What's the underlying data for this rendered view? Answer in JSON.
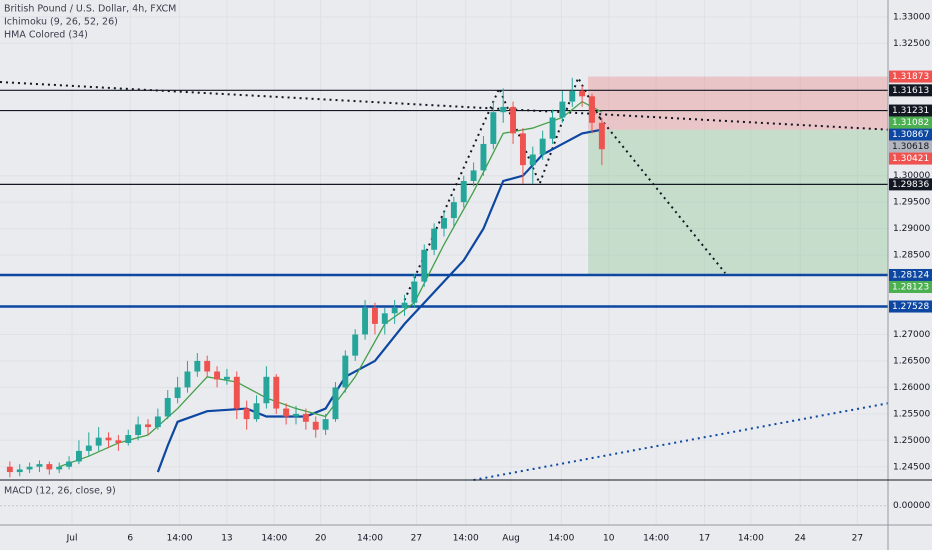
{
  "chart_data": {
    "type": "candlestick",
    "title": "British Pound / U.S. Dollar, 4h, FXCM",
    "indicators": [
      "Ichimoku (9, 26, 52, 26)",
      "HMA Colored (34)"
    ],
    "up_color": "#26a69a",
    "down_color": "#ef5350",
    "xlim": [
      -1,
      89
    ],
    "ylim": [
      1.2425,
      1.3332
    ],
    "xticks": [
      {
        "value": 6.3,
        "label": "Jul"
      },
      {
        "value": 12.2,
        "label": "6"
      },
      {
        "value": 17.2,
        "label": "14:00"
      },
      {
        "value": 22,
        "label": "13"
      },
      {
        "value": 26.8,
        "label": "14:00"
      },
      {
        "value": 31.5,
        "label": "20"
      },
      {
        "value": 36.5,
        "label": "14:00"
      },
      {
        "value": 41.2,
        "label": "27"
      },
      {
        "value": 46.2,
        "label": "14:00"
      },
      {
        "value": 50.8,
        "label": "Aug"
      },
      {
        "value": 55.9,
        "label": "14:00"
      },
      {
        "value": 60.7,
        "label": "10"
      },
      {
        "value": 65.5,
        "label": "14:00"
      },
      {
        "value": 70.4,
        "label": "17"
      },
      {
        "value": 75.1,
        "label": "14:00"
      },
      {
        "value": 80.1,
        "label": "24"
      },
      {
        "value": 85.9,
        "label": "27"
      }
    ],
    "yticks": [
      {
        "value": 1.33,
        "label": "1.33000"
      },
      {
        "value": 1.325,
        "label": "1.32500"
      },
      {
        "value": 1.3,
        "label": "1.30000"
      },
      {
        "value": 1.295,
        "label": "1.29500"
      },
      {
        "value": 1.29,
        "label": "1.29000"
      },
      {
        "value": 1.285,
        "label": "1.28500"
      },
      {
        "value": 1.27,
        "label": "1.27000"
      },
      {
        "value": 1.265,
        "label": "1.26500"
      },
      {
        "value": 1.26,
        "label": "1.26000"
      },
      {
        "value": 1.255,
        "label": "1.25500"
      },
      {
        "value": 1.25,
        "label": "1.25000"
      },
      {
        "value": 1.245,
        "label": "1.24500"
      }
    ],
    "candles": [
      [
        1.245,
        1.246,
        1.243,
        1.244
      ],
      [
        1.244,
        1.2455,
        1.2432,
        1.2445
      ],
      [
        1.2445,
        1.2458,
        1.2438,
        1.245
      ],
      [
        1.245,
        1.2462,
        1.244,
        1.2455
      ],
      [
        1.2455,
        1.246,
        1.2435,
        1.2445
      ],
      [
        1.2445,
        1.2458,
        1.2438,
        1.245
      ],
      [
        1.245,
        1.247,
        1.2445,
        1.246
      ],
      [
        1.246,
        1.25,
        1.2455,
        1.248
      ],
      [
        1.248,
        1.2515,
        1.247,
        1.249
      ],
      [
        1.249,
        1.2525,
        1.248,
        1.2505
      ],
      [
        1.2505,
        1.2515,
        1.2485,
        1.25
      ],
      [
        1.25,
        1.251,
        1.248,
        1.2495
      ],
      [
        1.2495,
        1.252,
        1.249,
        1.251
      ],
      [
        1.251,
        1.2545,
        1.25,
        1.253
      ],
      [
        1.253,
        1.254,
        1.251,
        1.2525
      ],
      [
        1.2525,
        1.256,
        1.252,
        1.2545
      ],
      [
        1.2545,
        1.2595,
        1.254,
        1.258
      ],
      [
        1.258,
        1.262,
        1.257,
        1.26
      ],
      [
        1.26,
        1.265,
        1.259,
        1.263
      ],
      [
        1.263,
        1.2665,
        1.262,
        1.265
      ],
      [
        1.265,
        1.266,
        1.262,
        1.263
      ],
      [
        1.263,
        1.264,
        1.26,
        1.2615
      ],
      [
        1.2615,
        1.2635,
        1.2605,
        1.262
      ],
      [
        1.262,
        1.263,
        1.254,
        1.256
      ],
      [
        1.256,
        1.2575,
        1.252,
        1.254
      ],
      [
        1.254,
        1.2585,
        1.2535,
        1.257
      ],
      [
        1.257,
        1.264,
        1.256,
        1.262
      ],
      [
        1.262,
        1.2625,
        1.255,
        1.256
      ],
      [
        1.256,
        1.257,
        1.253,
        1.2545
      ],
      [
        1.2545,
        1.2565,
        1.253,
        1.255
      ],
      [
        1.255,
        1.256,
        1.252,
        1.2535
      ],
      [
        1.2535,
        1.2545,
        1.2505,
        1.252
      ],
      [
        1.252,
        1.255,
        1.251,
        1.254
      ],
      [
        1.254,
        1.261,
        1.2535,
        1.26
      ],
      [
        1.26,
        1.267,
        1.259,
        1.266
      ],
      [
        1.266,
        1.271,
        1.265,
        1.27
      ],
      [
        1.27,
        1.2765,
        1.269,
        1.275
      ],
      [
        1.275,
        1.276,
        1.27,
        1.272
      ],
      [
        1.272,
        1.275,
        1.27,
        1.274
      ],
      [
        1.274,
        1.2765,
        1.272,
        1.275
      ],
      [
        1.275,
        1.2775,
        1.2735,
        1.276
      ],
      [
        1.276,
        1.2815,
        1.275,
        1.28
      ],
      [
        1.28,
        1.287,
        1.279,
        1.286
      ],
      [
        1.286,
        1.291,
        1.285,
        1.29
      ],
      [
        1.29,
        1.2935,
        1.2885,
        1.292
      ],
      [
        1.292,
        1.296,
        1.2905,
        1.295
      ],
      [
        1.295,
        1.3,
        1.294,
        1.299
      ],
      [
        1.299,
        1.3025,
        1.298,
        1.301
      ],
      [
        1.301,
        1.3075,
        1.3,
        1.306
      ],
      [
        1.306,
        1.314,
        1.305,
        1.312
      ],
      [
        1.312,
        1.3165,
        1.31,
        1.313
      ],
      [
        1.313,
        1.314,
        1.306,
        1.308
      ],
      [
        1.308,
        1.309,
        1.2985,
        1.302
      ],
      [
        1.302,
        1.3055,
        1.2985,
        1.304
      ],
      [
        1.304,
        1.3085,
        1.303,
        1.307
      ],
      [
        1.307,
        1.3125,
        1.306,
        1.311
      ],
      [
        1.311,
        1.316,
        1.31,
        1.314
      ],
      [
        1.314,
        1.3185,
        1.313,
        1.316
      ],
      [
        1.316,
        1.317,
        1.313,
        1.315
      ],
      [
        1.315,
        1.3155,
        1.308,
        1.31
      ],
      [
        1.31,
        1.311,
        1.302,
        1.305
      ]
    ],
    "lines": [
      {
        "color": "#0d47a1",
        "x": [
          15,
          16,
          17,
          20,
          24,
          26,
          30,
          32,
          34,
          37,
          40,
          42,
          44,
          46,
          48,
          50,
          52,
          54,
          56,
          58,
          60
        ],
        "y": [
          1.244,
          1.249,
          1.2535,
          1.2555,
          1.256,
          1.2545,
          1.2545,
          1.256,
          1.262,
          1.265,
          1.272,
          1.276,
          1.28,
          1.284,
          1.29,
          1.299,
          1.3,
          1.304,
          1.306,
          1.308,
          1.3087
        ]
      },
      {
        "color": "#43a047",
        "x": [
          5,
          8,
          11,
          14,
          17,
          20,
          23,
          26,
          29,
          32,
          35,
          38,
          41,
          44,
          47,
          50,
          53,
          56,
          58,
          60
        ],
        "y": [
          1.245,
          1.247,
          1.2495,
          1.251,
          1.256,
          1.262,
          1.261,
          1.258,
          1.256,
          1.2545,
          1.262,
          1.272,
          1.276,
          1.287,
          1.297,
          1.308,
          1.309,
          1.311,
          1.314,
          1.312
        ]
      }
    ],
    "trendlines": [
      {
        "x": [
          -1,
          89
        ],
        "y": [
          1.3177,
          1.3087
        ]
      },
      {
        "x": [
          47,
          89
        ],
        "y": [
          1.2425,
          1.257
        ]
      },
      {
        "x": [
          59.8,
          72.5
        ],
        "y": [
          1.3109,
          1.2816
        ]
      },
      {
        "x": [
          40,
          49.6,
          53.7,
          57.6,
          59.8
        ],
        "y": [
          1.2765,
          1.3165,
          1.2985,
          1.3185,
          1.3109
        ]
      }
    ],
    "levels": [
      {
        "value": 1.31613,
        "color": "#131722",
        "style": "thin"
      },
      {
        "value": 1.31231,
        "color": "#131722",
        "style": "thin"
      },
      {
        "value": 1.29836,
        "color": "#131722",
        "style": "thin"
      },
      {
        "value": 1.28124,
        "color": "#0d47a1",
        "style": "thick"
      },
      {
        "value": 1.27528,
        "color": "#0d47a1",
        "style": "thick"
      }
    ],
    "position": {
      "start": 58.6,
      "stop": 1.31873,
      "entry": 1.30867,
      "target": 1.28123
    },
    "price_labels": [
      {
        "value": 1.31873,
        "color": "#ef5350"
      },
      {
        "value": 1.31613,
        "color": "#131722"
      },
      {
        "value": 1.31231,
        "color": "#131722"
      },
      {
        "value": 1.31082,
        "color": "#4caf50"
      },
      {
        "value": 1.30867,
        "color": "#0d47a1"
      },
      {
        "value": 1.30618,
        "color": "#b2b5be"
      },
      {
        "value": 1.30421,
        "color": "#ef5350"
      },
      {
        "value": 1.29836,
        "color": "#131722"
      },
      {
        "value": 1.28124,
        "color": "#0d47a1"
      },
      {
        "value": 1.28123,
        "color": "#4caf50"
      },
      {
        "value": 1.27528,
        "color": "#0d47a1"
      }
    ],
    "macd": {
      "title": "MACD (12, 26, close, 9)",
      "ylim": [
        -0.006,
        0.008
      ],
      "yticks": [
        {
          "value": 0,
          "label": "0.00000"
        }
      ]
    }
  }
}
